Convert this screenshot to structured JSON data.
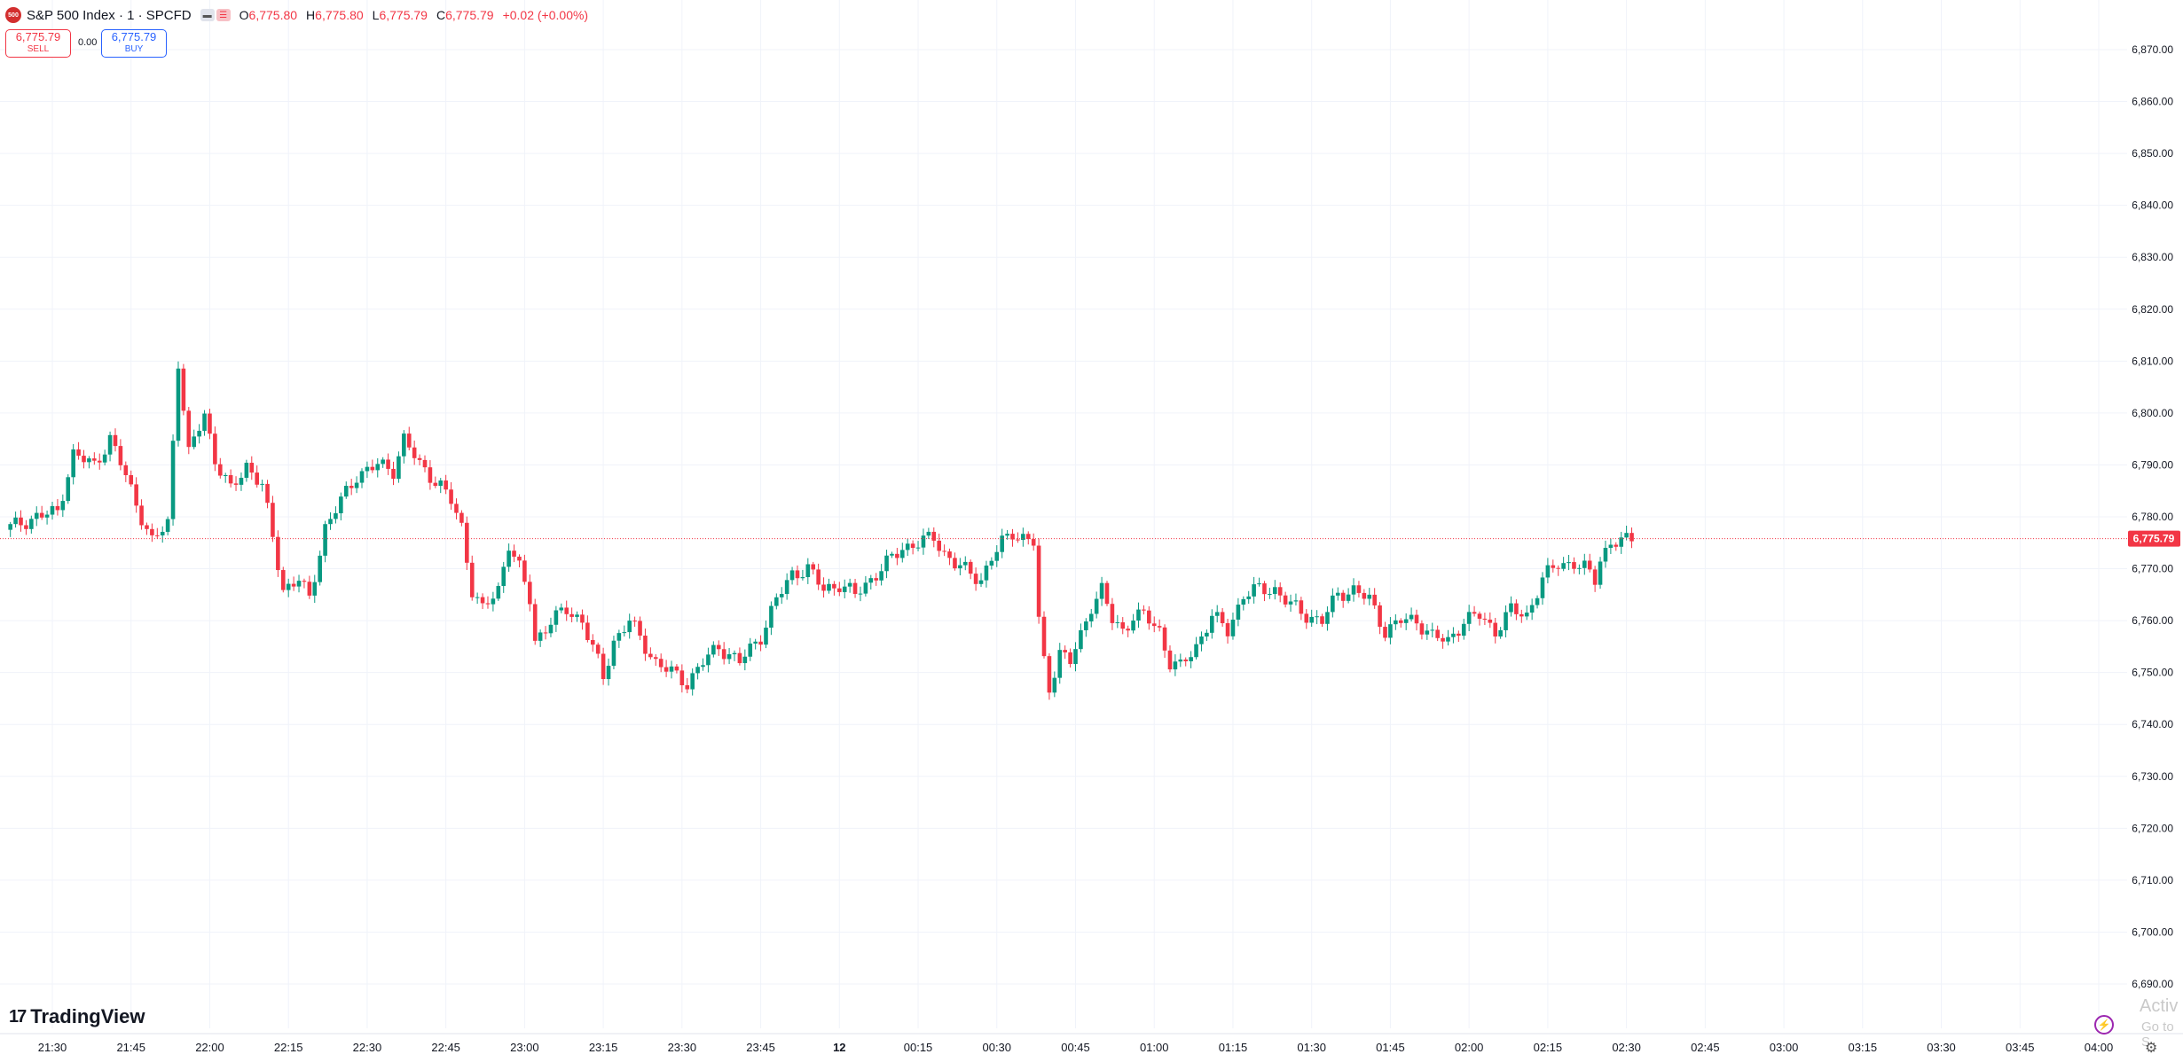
{
  "header": {
    "symbol_badge": "500",
    "title": "S&P 500 Index · 1 · SPCFD",
    "ohlc": [
      {
        "key": "O",
        "value": "6,775.80"
      },
      {
        "key": "H",
        "value": "6,775.80"
      },
      {
        "key": "L",
        "value": "6,775.79"
      },
      {
        "key": "C",
        "value": "6,775.79"
      }
    ],
    "change": "+0.02 (+0.00%)"
  },
  "trade": {
    "sell_price": "6,775.79",
    "sell_label": "SELL",
    "spread": "0.00",
    "buy_price": "6,775.79",
    "buy_label": "BUY"
  },
  "branding": {
    "logo_text": "TradingView"
  },
  "overlay": {
    "activate_text": "Activ",
    "goto_text": "Go to S"
  },
  "colors": {
    "up": "#089981",
    "down": "#f23645",
    "grid": "#f0f3fa",
    "axis_text": "#131722",
    "price_line": "#f23645"
  },
  "chart_data": {
    "type": "candlestick",
    "interval": "1 minute",
    "y_range": [
      6685,
      6875
    ],
    "y_ticks": [
      6870,
      6860,
      6850,
      6840,
      6830,
      6820,
      6810,
      6800,
      6790,
      6780,
      6770,
      6760,
      6750,
      6740,
      6730,
      6720,
      6710,
      6700,
      6690
    ],
    "y_tick_labels": [
      "6,870.00",
      "6,860.00",
      "6,850.00",
      "6,840.00",
      "6,830.00",
      "6,820.00",
      "6,810.00",
      "6,800.00",
      "6,790.00",
      "6,780.00",
      "6,770.00",
      "6,760.00",
      "6,750.00",
      "6,740.00",
      "6,730.00",
      "6,720.00",
      "6,710.00",
      "6,700.00",
      "6,690.00"
    ],
    "x_tick_labels": [
      "21:30",
      "21:45",
      "22:00",
      "22:15",
      "22:30",
      "22:45",
      "23:00",
      "23:15",
      "23:30",
      "23:45",
      "12",
      "00:15",
      "00:30",
      "00:45",
      "01:00",
      "01:15",
      "01:30",
      "01:45",
      "02:00",
      "02:15",
      "02:30",
      "02:45",
      "03:00",
      "03:15",
      "03:30",
      "03:45",
      "04:00"
    ],
    "x_start": "21:20",
    "last_price": 6775.79,
    "last_price_label": "6,775.79",
    "close_path": [
      [
        0,
        6778
      ],
      [
        5,
        6780
      ],
      [
        9,
        6781
      ],
      [
        12,
        6792
      ],
      [
        16,
        6790
      ],
      [
        19,
        6795
      ],
      [
        22,
        6788
      ],
      [
        25,
        6780
      ],
      [
        27,
        6775
      ],
      [
        30,
        6779
      ],
      [
        32,
        6810
      ],
      [
        34,
        6792
      ],
      [
        37,
        6800
      ],
      [
        39,
        6791
      ],
      [
        42,
        6785
      ],
      [
        45,
        6790
      ],
      [
        48,
        6786
      ],
      [
        50,
        6776
      ],
      [
        52,
        6766
      ],
      [
        55,
        6768
      ],
      [
        57,
        6764
      ],
      [
        60,
        6778
      ],
      [
        63,
        6783
      ],
      [
        66,
        6788
      ],
      [
        70,
        6790
      ],
      [
        73,
        6789
      ],
      [
        75,
        6795
      ],
      [
        78,
        6790
      ],
      [
        80,
        6788
      ],
      [
        82,
        6786
      ],
      [
        84,
        6783
      ],
      [
        86,
        6778
      ],
      [
        88,
        6766
      ],
      [
        90,
        6762
      ],
      [
        93,
        6766
      ],
      [
        95,
        6775
      ],
      [
        97,
        6770
      ],
      [
        99,
        6764
      ],
      [
        100,
        6756
      ],
      [
        103,
        6760
      ],
      [
        106,
        6762
      ],
      [
        109,
        6760
      ],
      [
        112,
        6752
      ],
      [
        113,
        6749
      ],
      [
        115,
        6756
      ],
      [
        118,
        6760
      ],
      [
        121,
        6755
      ],
      [
        123,
        6752
      ],
      [
        126,
        6750
      ],
      [
        129,
        6748
      ],
      [
        132,
        6752
      ],
      [
        135,
        6755
      ],
      [
        139,
        6752
      ],
      [
        143,
        6757
      ],
      [
        146,
        6764
      ],
      [
        149,
        6769
      ],
      [
        152,
        6770
      ],
      [
        155,
        6766
      ],
      [
        158,
        6767
      ],
      [
        161,
        6765
      ],
      [
        164,
        6768
      ],
      [
        167,
        6771
      ],
      [
        170,
        6774
      ],
      [
        173,
        6775
      ],
      [
        176,
        6776
      ],
      [
        178,
        6773
      ],
      [
        180,
        6771
      ],
      [
        183,
        6769
      ],
      [
        185,
        6768
      ],
      [
        187,
        6772
      ],
      [
        189,
        6775
      ],
      [
        191,
        6777
      ],
      [
        193,
        6776
      ],
      [
        195,
        6775
      ],
      [
        196,
        6760
      ],
      [
        197,
        6752
      ],
      [
        198,
        6747
      ],
      [
        200,
        6754
      ],
      [
        202,
        6752
      ],
      [
        204,
        6757
      ],
      [
        206,
        6763
      ],
      [
        208,
        6766
      ],
      [
        210,
        6760
      ],
      [
        212,
        6758
      ],
      [
        214,
        6761
      ],
      [
        216,
        6761
      ],
      [
        219,
        6758
      ],
      [
        221,
        6752
      ],
      [
        223,
        6751
      ],
      [
        226,
        6755
      ],
      [
        229,
        6761
      ],
      [
        232,
        6758
      ],
      [
        235,
        6765
      ],
      [
        238,
        6766
      ],
      [
        241,
        6766
      ],
      [
        244,
        6763
      ],
      [
        247,
        6761
      ],
      [
        250,
        6760
      ],
      [
        253,
        6765
      ],
      [
        256,
        6766
      ],
      [
        259,
        6764
      ],
      [
        262,
        6758
      ],
      [
        265,
        6760
      ],
      [
        268,
        6760
      ],
      [
        271,
        6757
      ],
      [
        274,
        6756
      ],
      [
        277,
        6760
      ],
      [
        280,
        6761
      ],
      [
        283,
        6758
      ],
      [
        286,
        6762
      ],
      [
        289,
        6761
      ],
      [
        292,
        6768
      ],
      [
        295,
        6771
      ],
      [
        298,
        6771
      ],
      [
        300,
        6770
      ],
      [
        302,
        6768
      ],
      [
        303,
        6772
      ],
      [
        305,
        6775
      ],
      [
        307,
        6775
      ],
      [
        309,
        6776
      ]
    ]
  }
}
